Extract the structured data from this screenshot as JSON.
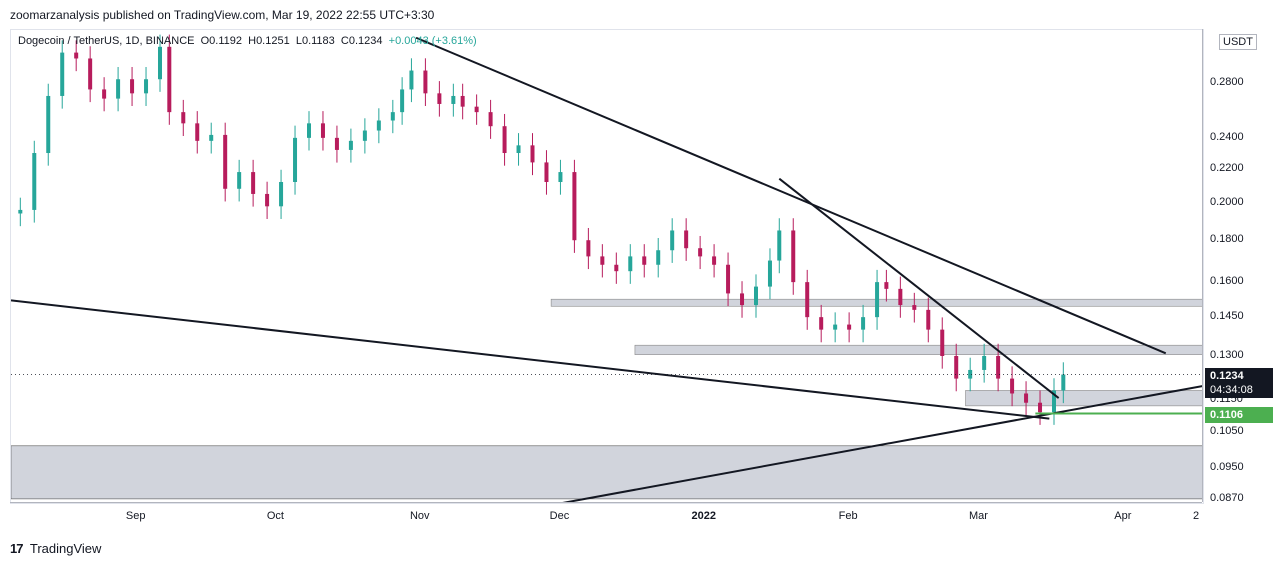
{
  "header": {
    "published": "zoomarzanalysis published on TradingView.com, Mar 19, 2022 22:55 UTC+3:30"
  },
  "symbol": {
    "name": "Dogecoin / TetherUS, 1D, BINANCE",
    "open": "O0.1192",
    "high": "H0.1251",
    "low": "L0.1183",
    "close": "C0.1234",
    "change": "+0.0043 (+3.61%)"
  },
  "axis": {
    "unit": "USDT",
    "y_labels": [
      "0.2800",
      "0.2400",
      "0.2200",
      "0.2000",
      "0.1800",
      "0.1600",
      "0.1450",
      "0.1300",
      "0.1150",
      "0.1050",
      "0.0950",
      "0.0870"
    ],
    "x_labels": [
      "Sep",
      "Oct",
      "Nov",
      "Dec",
      "2022",
      "Feb",
      "Mar",
      "Apr",
      "2"
    ]
  },
  "badges": {
    "last_price": "0.1234",
    "countdown": "04:34:08",
    "marked_low": "0.1106"
  },
  "footer": {
    "brand": "TradingView",
    "logo_glyph": "17"
  },
  "chart_data": {
    "type": "candlestick",
    "log_scale": true,
    "ylim": [
      0.086,
      0.325
    ],
    "colors": {
      "up": "#26a69a",
      "down": "#b71c5c",
      "zone": "#d1d4dc",
      "line": "#131722",
      "low_line": "#4caf50"
    },
    "close_series": [
      {
        "x": "2021-08-07",
        "c": 0.196
      },
      {
        "x": "2021-08-10",
        "c": 0.23
      },
      {
        "x": "2021-08-13",
        "c": 0.27
      },
      {
        "x": "2021-08-16",
        "c": 0.305
      },
      {
        "x": "2021-08-19",
        "c": 0.3
      },
      {
        "x": "2021-08-22",
        "c": 0.275
      },
      {
        "x": "2021-08-25",
        "c": 0.268
      },
      {
        "x": "2021-08-28",
        "c": 0.283
      },
      {
        "x": "2021-08-31",
        "c": 0.272
      },
      {
        "x": "2021-09-03",
        "c": 0.283
      },
      {
        "x": "2021-09-06",
        "c": 0.31
      },
      {
        "x": "2021-09-08",
        "c": 0.258
      },
      {
        "x": "2021-09-11",
        "c": 0.25
      },
      {
        "x": "2021-09-14",
        "c": 0.238
      },
      {
        "x": "2021-09-17",
        "c": 0.242
      },
      {
        "x": "2021-09-20",
        "c": 0.208
      },
      {
        "x": "2021-09-23",
        "c": 0.218
      },
      {
        "x": "2021-09-26",
        "c": 0.205
      },
      {
        "x": "2021-09-29",
        "c": 0.198
      },
      {
        "x": "2021-10-02",
        "c": 0.212
      },
      {
        "x": "2021-10-05",
        "c": 0.24
      },
      {
        "x": "2021-10-08",
        "c": 0.25
      },
      {
        "x": "2021-10-11",
        "c": 0.24
      },
      {
        "x": "2021-10-14",
        "c": 0.232
      },
      {
        "x": "2021-10-17",
        "c": 0.238
      },
      {
        "x": "2021-10-20",
        "c": 0.245
      },
      {
        "x": "2021-10-23",
        "c": 0.252
      },
      {
        "x": "2021-10-26",
        "c": 0.258
      },
      {
        "x": "2021-10-28",
        "c": 0.275
      },
      {
        "x": "2021-10-30",
        "c": 0.29
      },
      {
        "x": "2021-11-02",
        "c": 0.272
      },
      {
        "x": "2021-11-05",
        "c": 0.264
      },
      {
        "x": "2021-11-08",
        "c": 0.27
      },
      {
        "x": "2021-11-10",
        "c": 0.262
      },
      {
        "x": "2021-11-13",
        "c": 0.258
      },
      {
        "x": "2021-11-16",
        "c": 0.248
      },
      {
        "x": "2021-11-19",
        "c": 0.23
      },
      {
        "x": "2021-11-22",
        "c": 0.235
      },
      {
        "x": "2021-11-25",
        "c": 0.224
      },
      {
        "x": "2021-11-28",
        "c": 0.212
      },
      {
        "x": "2021-12-01",
        "c": 0.218
      },
      {
        "x": "2021-12-04",
        "c": 0.18
      },
      {
        "x": "2021-12-07",
        "c": 0.172
      },
      {
        "x": "2021-12-10",
        "c": 0.168
      },
      {
        "x": "2021-12-13",
        "c": 0.165
      },
      {
        "x": "2021-12-16",
        "c": 0.172
      },
      {
        "x": "2021-12-19",
        "c": 0.168
      },
      {
        "x": "2021-12-22",
        "c": 0.175
      },
      {
        "x": "2021-12-25",
        "c": 0.185
      },
      {
        "x": "2021-12-28",
        "c": 0.176
      },
      {
        "x": "2021-12-31",
        "c": 0.172
      },
      {
        "x": "2022-01-03",
        "c": 0.168
      },
      {
        "x": "2022-01-06",
        "c": 0.155
      },
      {
        "x": "2022-01-09",
        "c": 0.15
      },
      {
        "x": "2022-01-12",
        "c": 0.158
      },
      {
        "x": "2022-01-15",
        "c": 0.17
      },
      {
        "x": "2022-01-17",
        "c": 0.185
      },
      {
        "x": "2022-01-20",
        "c": 0.16
      },
      {
        "x": "2022-01-23",
        "c": 0.145
      },
      {
        "x": "2022-01-26",
        "c": 0.14
      },
      {
        "x": "2022-01-29",
        "c": 0.142
      },
      {
        "x": "2022-02-01",
        "c": 0.14
      },
      {
        "x": "2022-02-04",
        "c": 0.145
      },
      {
        "x": "2022-02-07",
        "c": 0.16
      },
      {
        "x": "2022-02-09",
        "c": 0.157
      },
      {
        "x": "2022-02-12",
        "c": 0.15
      },
      {
        "x": "2022-02-15",
        "c": 0.148
      },
      {
        "x": "2022-02-18",
        "c": 0.14
      },
      {
        "x": "2022-02-21",
        "c": 0.13
      },
      {
        "x": "2022-02-24",
        "c": 0.122
      },
      {
        "x": "2022-02-27",
        "c": 0.125
      },
      {
        "x": "2022-03-02",
        "c": 0.13
      },
      {
        "x": "2022-03-05",
        "c": 0.122
      },
      {
        "x": "2022-03-08",
        "c": 0.117
      },
      {
        "x": "2022-03-11",
        "c": 0.114
      },
      {
        "x": "2022-03-14",
        "c": 0.111
      },
      {
        "x": "2022-03-17",
        "c": 0.118
      },
      {
        "x": "2022-03-19",
        "c": 0.1234
      }
    ]
  }
}
